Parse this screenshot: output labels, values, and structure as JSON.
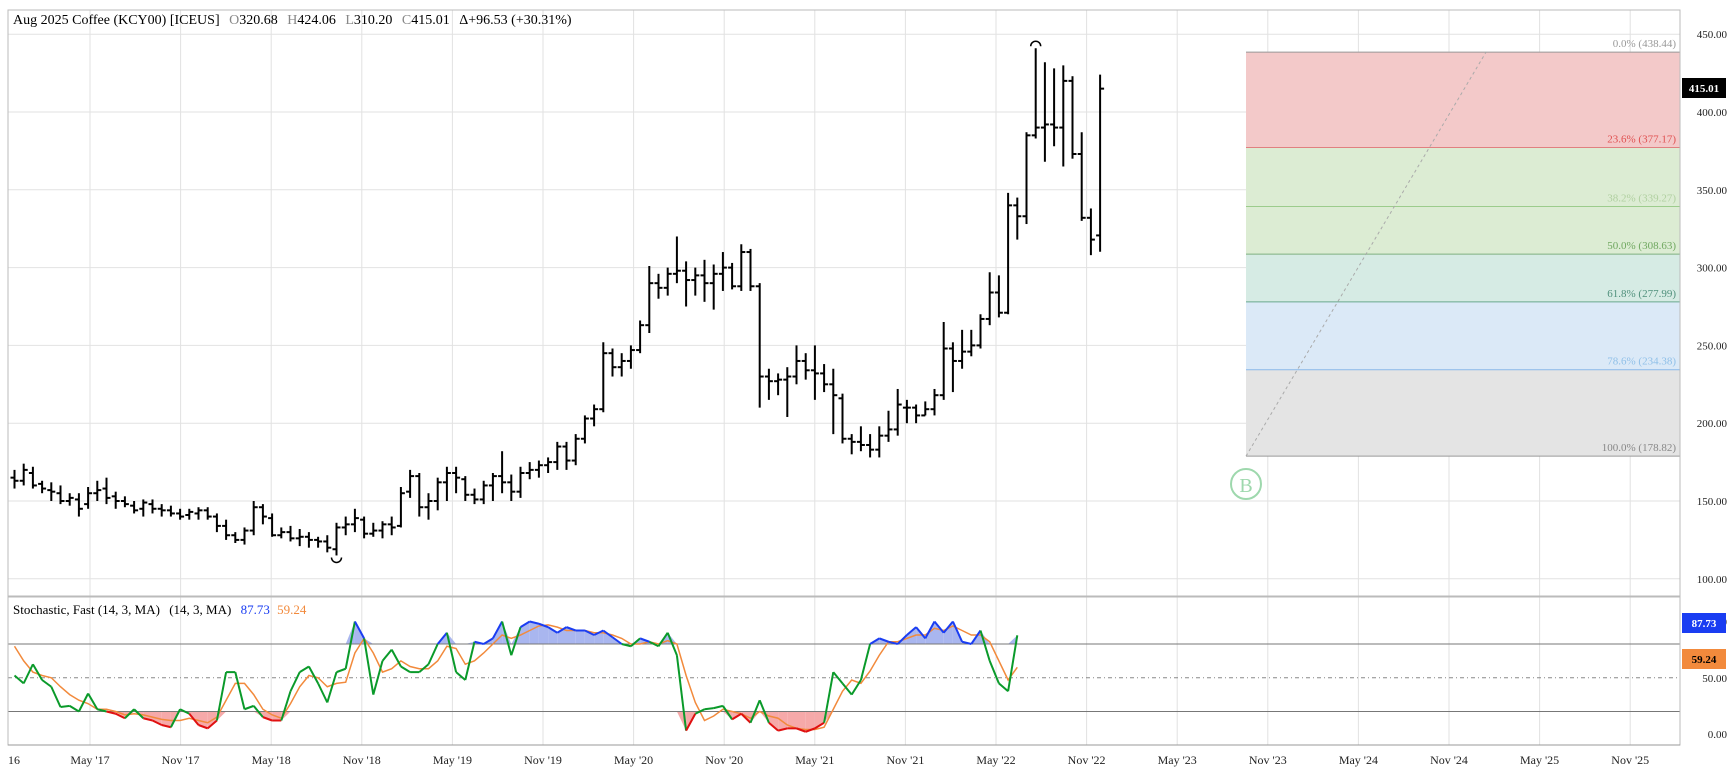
{
  "header": {
    "symbol": "Aug 2025 Coffee (KCY00) [ICEUS]",
    "o_label": "O",
    "o_value": "320.68",
    "h_label": "H",
    "h_value": "424.06",
    "l_label": "L",
    "l_value": "310.20",
    "c_label": "C",
    "c_value": "415.01",
    "change": "Δ+96.53 (+30.31%)"
  },
  "price_tag": "415.01",
  "price_axis": [
    "450.00",
    "400.00",
    "350.00",
    "300.00",
    "250.00",
    "200.00",
    "150.00",
    "100.00"
  ],
  "time_axis": [
    "16",
    "May '17",
    "Nov '17",
    "May '18",
    "Nov '18",
    "May '19",
    "Nov '19",
    "May '20",
    "Nov '20",
    "May '21",
    "Nov '21",
    "May '22",
    "Nov '22",
    "May '23",
    "Nov '23",
    "May '24",
    "Nov '24",
    "May '25",
    "Nov '25"
  ],
  "fib_labels": [
    "0.0% (438.44)",
    "23.6% (377.17)",
    "38.2% (339.27)",
    "50.0% (308.63)",
    "61.8% (277.99)",
    "78.6% (234.38)",
    "100.0% (178.82)"
  ],
  "buy_marker": "B",
  "stochastic": {
    "title": "Stochastic, Fast (14, 3, MA)",
    "params": "(14, 3, MA)",
    "k_value": "87.73",
    "d_value": "59.24",
    "axis": [
      "100.00",
      "50.00",
      "0.00"
    ],
    "k_tag": "87.73",
    "d_tag": "59.24"
  },
  "colors": {
    "fib_red": "#f3c9c9",
    "fib_green": "#dcecd3",
    "fib_teal": "#d6ebe4",
    "fib_blue": "#dbe9f7",
    "fib_grey": "#e4e4e4",
    "k_line": "#0a9a2a",
    "d_line": "#f28a3c",
    "overbought_fill": "#a9b6ef",
    "oversold_fill": "#f6a9a9",
    "k_high": "#1a3df2",
    "k_low": "#e01010"
  },
  "chart_data": [
    {
      "type": "ohlc",
      "title": "Aug 2025 Coffee (KCY00) [ICEUS]",
      "interval": "monthly",
      "ylim": [
        95,
        455
      ],
      "first_bar": "2016-09",
      "ohlc": [
        [
          165,
          170,
          158,
          163
        ],
        [
          163,
          174,
          160,
          170
        ],
        [
          168,
          172,
          158,
          160
        ],
        [
          161,
          163,
          155,
          158
        ],
        [
          157,
          162,
          150,
          156
        ],
        [
          155,
          160,
          148,
          150
        ],
        [
          150,
          155,
          147,
          152
        ],
        [
          151,
          155,
          140,
          145
        ],
        [
          148,
          159,
          145,
          155
        ],
        [
          155,
          163,
          150,
          157
        ],
        [
          158,
          165,
          148,
          152
        ],
        [
          153,
          156,
          145,
          150
        ],
        [
          150,
          153,
          146,
          148
        ],
        [
          147,
          150,
          142,
          144
        ],
        [
          145,
          151,
          140,
          149
        ],
        [
          148,
          151,
          142,
          145
        ],
        [
          145,
          148,
          140,
          144
        ],
        [
          144,
          147,
          140,
          142
        ],
        [
          142,
          145,
          138,
          140
        ],
        [
          141,
          145,
          138,
          143
        ],
        [
          142,
          146,
          138,
          144
        ],
        [
          144,
          146,
          138,
          140
        ],
        [
          140,
          142,
          130,
          134
        ],
        [
          134,
          138,
          125,
          128
        ],
        [
          128,
          130,
          123,
          125
        ],
        [
          125,
          133,
          122,
          131
        ],
        [
          131,
          150,
          128,
          146
        ],
        [
          146,
          148,
          135,
          140
        ],
        [
          139,
          142,
          127,
          128
        ],
        [
          128,
          133,
          126,
          130
        ],
        [
          130,
          134,
          124,
          126
        ],
        [
          126,
          132,
          121,
          127
        ],
        [
          127,
          130,
          120,
          125
        ],
        [
          125,
          127,
          120,
          124
        ],
        [
          124,
          128,
          117,
          120
        ],
        [
          119,
          136,
          115,
          133
        ],
        [
          133,
          140,
          128,
          135
        ],
        [
          135,
          145,
          130,
          139
        ],
        [
          138,
          140,
          126,
          129
        ],
        [
          129,
          136,
          127,
          131
        ],
        [
          131,
          137,
          126,
          135
        ],
        [
          135,
          140,
          128,
          133
        ],
        [
          134,
          159,
          133,
          155
        ],
        [
          156,
          170,
          152,
          166
        ],
        [
          166,
          168,
          140,
          146
        ],
        [
          146,
          155,
          138,
          150
        ],
        [
          150,
          165,
          144,
          162
        ],
        [
          162,
          172,
          150,
          168
        ],
        [
          168,
          172,
          155,
          165
        ],
        [
          164,
          166,
          150,
          154
        ],
        [
          154,
          158,
          148,
          151
        ],
        [
          151,
          163,
          148,
          160
        ],
        [
          160,
          168,
          150,
          166
        ],
        [
          166,
          182,
          155,
          162
        ],
        [
          162,
          167,
          150,
          156
        ],
        [
          156,
          172,
          152,
          168
        ],
        [
          168,
          175,
          164,
          170
        ],
        [
          170,
          176,
          165,
          173
        ],
        [
          173,
          178,
          168,
          175
        ],
        [
          175,
          188,
          170,
          185
        ],
        [
          185,
          188,
          170,
          176
        ],
        [
          176,
          193,
          173,
          190
        ],
        [
          190,
          205,
          187,
          203
        ],
        [
          203,
          212,
          198,
          209
        ],
        [
          209,
          252,
          207,
          245
        ],
        [
          245,
          248,
          230,
          236
        ],
        [
          236,
          245,
          230,
          240
        ],
        [
          240,
          250,
          235,
          247
        ],
        [
          247,
          266,
          245,
          263
        ],
        [
          263,
          301,
          258,
          290
        ],
        [
          290,
          296,
          280,
          287
        ],
        [
          287,
          300,
          282,
          296
        ],
        [
          296,
          320,
          290,
          298
        ],
        [
          298,
          304,
          275,
          292
        ],
        [
          292,
          300,
          282,
          295
        ],
        [
          295,
          305,
          278,
          290
        ],
        [
          290,
          302,
          273,
          296
        ],
        [
          296,
          310,
          285,
          300
        ],
        [
          300,
          303,
          286,
          288
        ],
        [
          288,
          315,
          285,
          310
        ],
        [
          310,
          312,
          285,
          288
        ],
        [
          288,
          290,
          210,
          230
        ],
        [
          230,
          235,
          215,
          227
        ],
        [
          227,
          232,
          218,
          228
        ],
        [
          228,
          236,
          204,
          230
        ],
        [
          230,
          250,
          225,
          240
        ],
        [
          240,
          245,
          228,
          234
        ],
        [
          234,
          250,
          215,
          232
        ],
        [
          232,
          238,
          220,
          225
        ],
        [
          225,
          235,
          193,
          218
        ],
        [
          216,
          219,
          187,
          190
        ],
        [
          190,
          193,
          180,
          188
        ],
        [
          188,
          198,
          182,
          186
        ],
        [
          186,
          193,
          178,
          183
        ],
        [
          183,
          198,
          178,
          192
        ],
        [
          192,
          208,
          188,
          196
        ],
        [
          196,
          222,
          192,
          212
        ],
        [
          210,
          215,
          200,
          210
        ],
        [
          210,
          212,
          200,
          205
        ],
        [
          205,
          214,
          205,
          209
        ],
        [
          209,
          222,
          205,
          218
        ],
        [
          218,
          265,
          215,
          248
        ],
        [
          248,
          252,
          220,
          240
        ],
        [
          240,
          260,
          235,
          246
        ],
        [
          246,
          260,
          243,
          250
        ],
        [
          250,
          270,
          248,
          267
        ],
        [
          267,
          297,
          263,
          284
        ],
        [
          284,
          295,
          268,
          271
        ],
        [
          271,
          348,
          270,
          340
        ],
        [
          340,
          345,
          318,
          333
        ],
        [
          333,
          387,
          328,
          385
        ],
        [
          385,
          441,
          383,
          390
        ],
        [
          390,
          432,
          368,
          392
        ],
        [
          392,
          428,
          378,
          390
        ],
        [
          390,
          430,
          365,
          420
        ],
        [
          420,
          423,
          370,
          373
        ],
        [
          373,
          387,
          330,
          332
        ],
        [
          332,
          338,
          308,
          318
        ],
        [
          320.68,
          424.06,
          310.2,
          415.01
        ]
      ]
    },
    {
      "type": "fibonacci",
      "high": 438.44,
      "low": 178.82,
      "levels": [
        {
          "pct": 0.0,
          "price": 438.44
        },
        {
          "pct": 23.6,
          "price": 377.17
        },
        {
          "pct": 38.2,
          "price": 339.27
        },
        {
          "pct": 50.0,
          "price": 308.63
        },
        {
          "pct": 61.8,
          "price": 277.99
        },
        {
          "pct": 78.6,
          "price": 234.38
        },
        {
          "pct": 100.0,
          "price": 178.82
        }
      ]
    },
    {
      "type": "line",
      "title": "Stochastic, Fast (14, 3, MA)",
      "ylim": [
        0,
        100
      ],
      "overbought": 80,
      "oversold": 20,
      "midline": 50,
      "series": [
        {
          "values": [
            52,
            45,
            62,
            48,
            42,
            24,
            25,
            20,
            36,
            22,
            20,
            18,
            14,
            22,
            14,
            12,
            8,
            6,
            22,
            18,
            8,
            5,
            12,
            55,
            55,
            22,
            25,
            15,
            12,
            12,
            38,
            55,
            60,
            45,
            28,
            55,
            58,
            100,
            85,
            35,
            65,
            75,
            60,
            55,
            55,
            62,
            80,
            90,
            55,
            48,
            82,
            80,
            85,
            100,
            70,
            95,
            100,
            98,
            95,
            90,
            95,
            92,
            92,
            88,
            92,
            86,
            80,
            78,
            85,
            82,
            78,
            90,
            70,
            3,
            18,
            22,
            23,
            25,
            13,
            18,
            10,
            30,
            10,
            3,
            5,
            5,
            2,
            5,
            10,
            55,
            45,
            35,
            48,
            80,
            85,
            82,
            80,
            88,
            95,
            85,
            100,
            90,
            100,
            82,
            80,
            92,
            65,
            45,
            38,
            87.73
          ]
        },
        {
          "values": [
            78,
            65,
            55,
            52,
            50,
            42,
            35,
            30,
            27,
            22,
            22,
            20,
            17,
            18,
            17,
            15,
            13,
            12,
            12,
            14,
            12,
            10,
            15,
            30,
            45,
            45,
            35,
            22,
            17,
            14,
            27,
            42,
            52,
            50,
            42,
            45,
            46,
            72,
            85,
            72,
            55,
            58,
            65,
            60,
            58,
            58,
            65,
            78,
            76,
            62,
            65,
            72,
            80,
            88,
            85,
            88,
            92,
            96,
            97,
            95,
            92,
            92,
            92,
            90,
            90,
            88,
            85,
            80,
            80,
            82,
            80,
            83,
            80,
            52,
            28,
            12,
            16,
            22,
            20,
            18,
            14,
            20,
            16,
            14,
            8,
            5,
            4,
            4,
            6,
            22,
            38,
            48,
            45,
            56,
            70,
            82,
            82,
            85,
            88,
            88,
            94,
            92,
            96,
            92,
            88,
            88,
            82,
            65,
            48,
            59.24
          ]
        }
      ]
    }
  ]
}
